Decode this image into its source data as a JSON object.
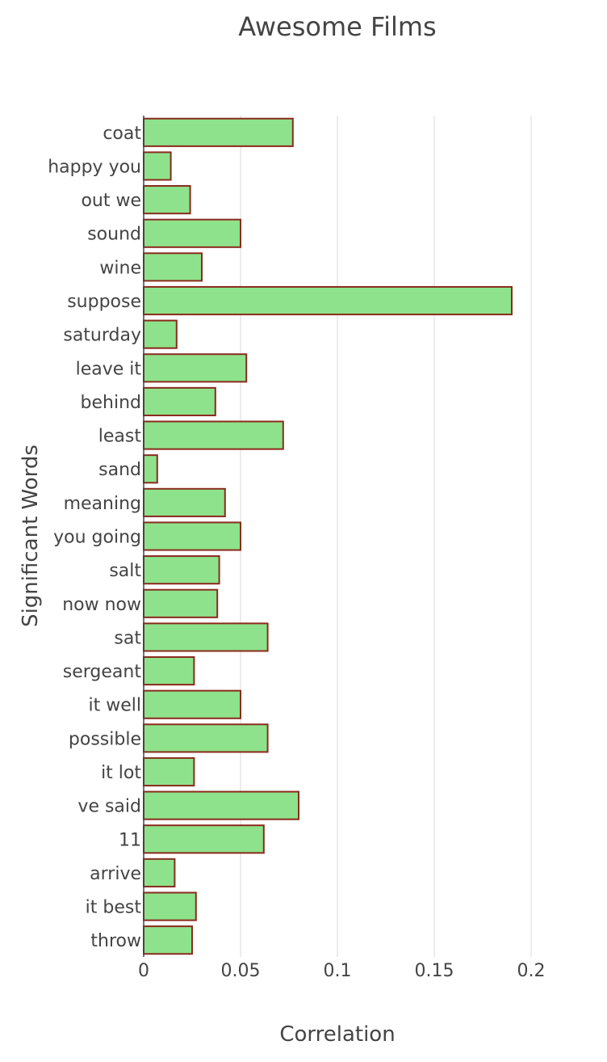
{
  "chart_data": {
    "type": "bar",
    "orientation": "horizontal",
    "title": "Awesome Films",
    "xlabel": "Correlation",
    "ylabel": "Significant Words",
    "xlim": [
      0,
      0.2
    ],
    "xticks": [
      0,
      0.05,
      0.1,
      0.15,
      0.2
    ],
    "xtick_labels": [
      "0",
      "0.05",
      "0.1",
      "0.15",
      "0.2"
    ],
    "grid": true,
    "legend": "none",
    "bar_fill": "#8ee28b",
    "bar_stroke": "#8b2a1d",
    "categories": [
      "coat",
      "happy you",
      "out we",
      "sound",
      "wine",
      "suppose",
      "saturday",
      "leave it",
      "behind",
      "least",
      "sand",
      "meaning",
      "you going",
      "salt",
      "now now",
      "sat",
      "sergeant",
      "it well",
      "possible",
      "it lot",
      "ve said",
      "11",
      "arrive",
      "it best",
      "throw"
    ],
    "values": [
      0.077,
      0.014,
      0.024,
      0.05,
      0.03,
      0.19,
      0.017,
      0.053,
      0.037,
      0.072,
      0.007,
      0.042,
      0.05,
      0.039,
      0.038,
      0.064,
      0.026,
      0.05,
      0.064,
      0.026,
      0.08,
      0.062,
      0.016,
      0.027,
      0.025
    ]
  }
}
